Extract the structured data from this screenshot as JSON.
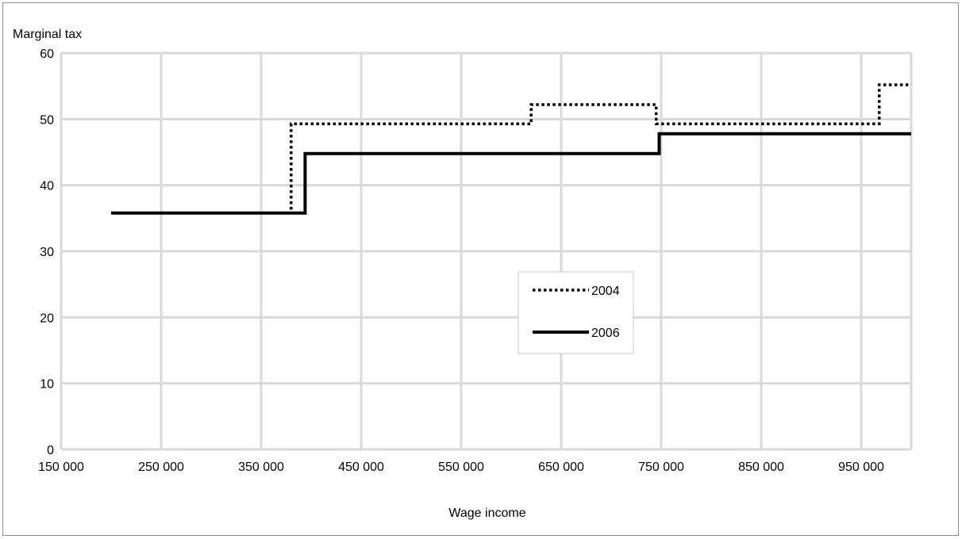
{
  "chart_data": {
    "type": "line",
    "title": "",
    "xlabel": "Wage income",
    "ylabel": "Marginal tax",
    "xlim": [
      150000,
      1000000
    ],
    "ylim": [
      0,
      60
    ],
    "x_ticks": [
      150000,
      250000,
      350000,
      450000,
      550000,
      650000,
      750000,
      850000,
      950000
    ],
    "x_tick_labels": [
      "150 000",
      "250 000",
      "350 000",
      "450 000",
      "550 000",
      "650 000",
      "750 000",
      "850 000",
      "950 000"
    ],
    "y_ticks": [
      0,
      10,
      20,
      30,
      40,
      50,
      60
    ],
    "y_tick_labels": [
      "0",
      "10",
      "20",
      "30",
      "40",
      "50",
      "60"
    ],
    "grid": true,
    "legend_placement": "center-right",
    "step_lines": true,
    "series": [
      {
        "name": "2004",
        "style": "dotted",
        "color": "#000000",
        "x": [
          200000,
          380000,
          380000,
          620000,
          620000,
          745000,
          745000,
          968000,
          968000,
          1000000
        ],
        "y": [
          35.8,
          35.8,
          49.3,
          49.3,
          52.2,
          52.2,
          49.3,
          49.3,
          55.2,
          55.2
        ]
      },
      {
        "name": "2006",
        "style": "solid",
        "color": "#000000",
        "x": [
          200000,
          394000,
          394000,
          748000,
          748000,
          1000000
        ],
        "y": [
          35.8,
          35.8,
          44.8,
          44.8,
          47.8,
          47.8
        ]
      }
    ]
  }
}
